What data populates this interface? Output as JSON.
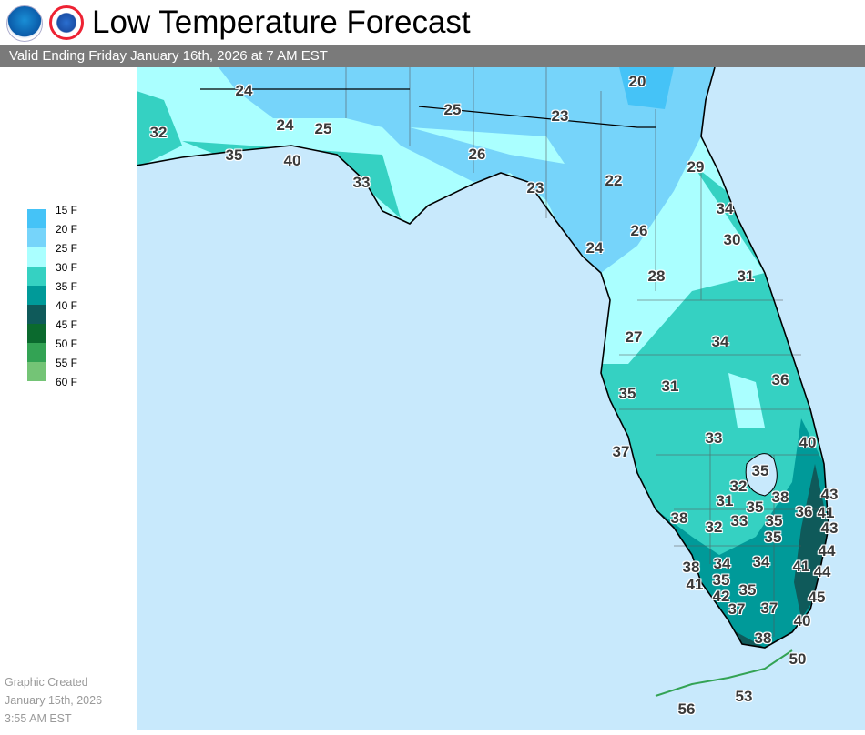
{
  "header": {
    "title": "Low Temperature Forecast",
    "valid": "Valid Ending Friday January 16th, 2026 at 7 AM EST",
    "logos": [
      "NOAA",
      "NATIONAL WEATHER SERVICE"
    ]
  },
  "legend": {
    "items": [
      {
        "label": "15 F",
        "color": "#45c3f7"
      },
      {
        "label": "20 F",
        "color": "#76d4fa"
      },
      {
        "label": "25 F",
        "color": "#aaffff"
      },
      {
        "label": "30 F",
        "color": "#35d1c2"
      },
      {
        "label": "35 F",
        "color": "#009a99"
      },
      {
        "label": "40 F",
        "color": "#0f5a5a"
      },
      {
        "label": "45 F",
        "color": "#0b6a2e"
      },
      {
        "label": "50 F",
        "color": "#33a354"
      },
      {
        "label": "55 F",
        "color": "#74c476"
      },
      {
        "label": "60 F",
        "color": ""
      }
    ]
  },
  "created": {
    "line1": "Graphic Created",
    "line2": "January 15th, 2026",
    "line3": "3:55 AM EST"
  },
  "map": {
    "ocean_color": "#c8e9fc",
    "temps": [
      "24",
      "20",
      "25",
      "23",
      "32",
      "24",
      "25",
      "35",
      "40",
      "26",
      "29",
      "33",
      "23",
      "22",
      "34",
      "26",
      "30",
      "24",
      "28",
      "31",
      "34",
      "27",
      "36",
      "35",
      "31",
      "33",
      "40",
      "37",
      "35",
      "32",
      "38",
      "31",
      "35",
      "36",
      "41",
      "43",
      "38",
      "32",
      "33",
      "35",
      "43",
      "35",
      "44",
      "38",
      "34",
      "34",
      "41",
      "44",
      "35",
      "41",
      "42",
      "35",
      "45",
      "37",
      "37",
      "40",
      "38",
      "50",
      "53",
      "56"
    ]
  }
}
